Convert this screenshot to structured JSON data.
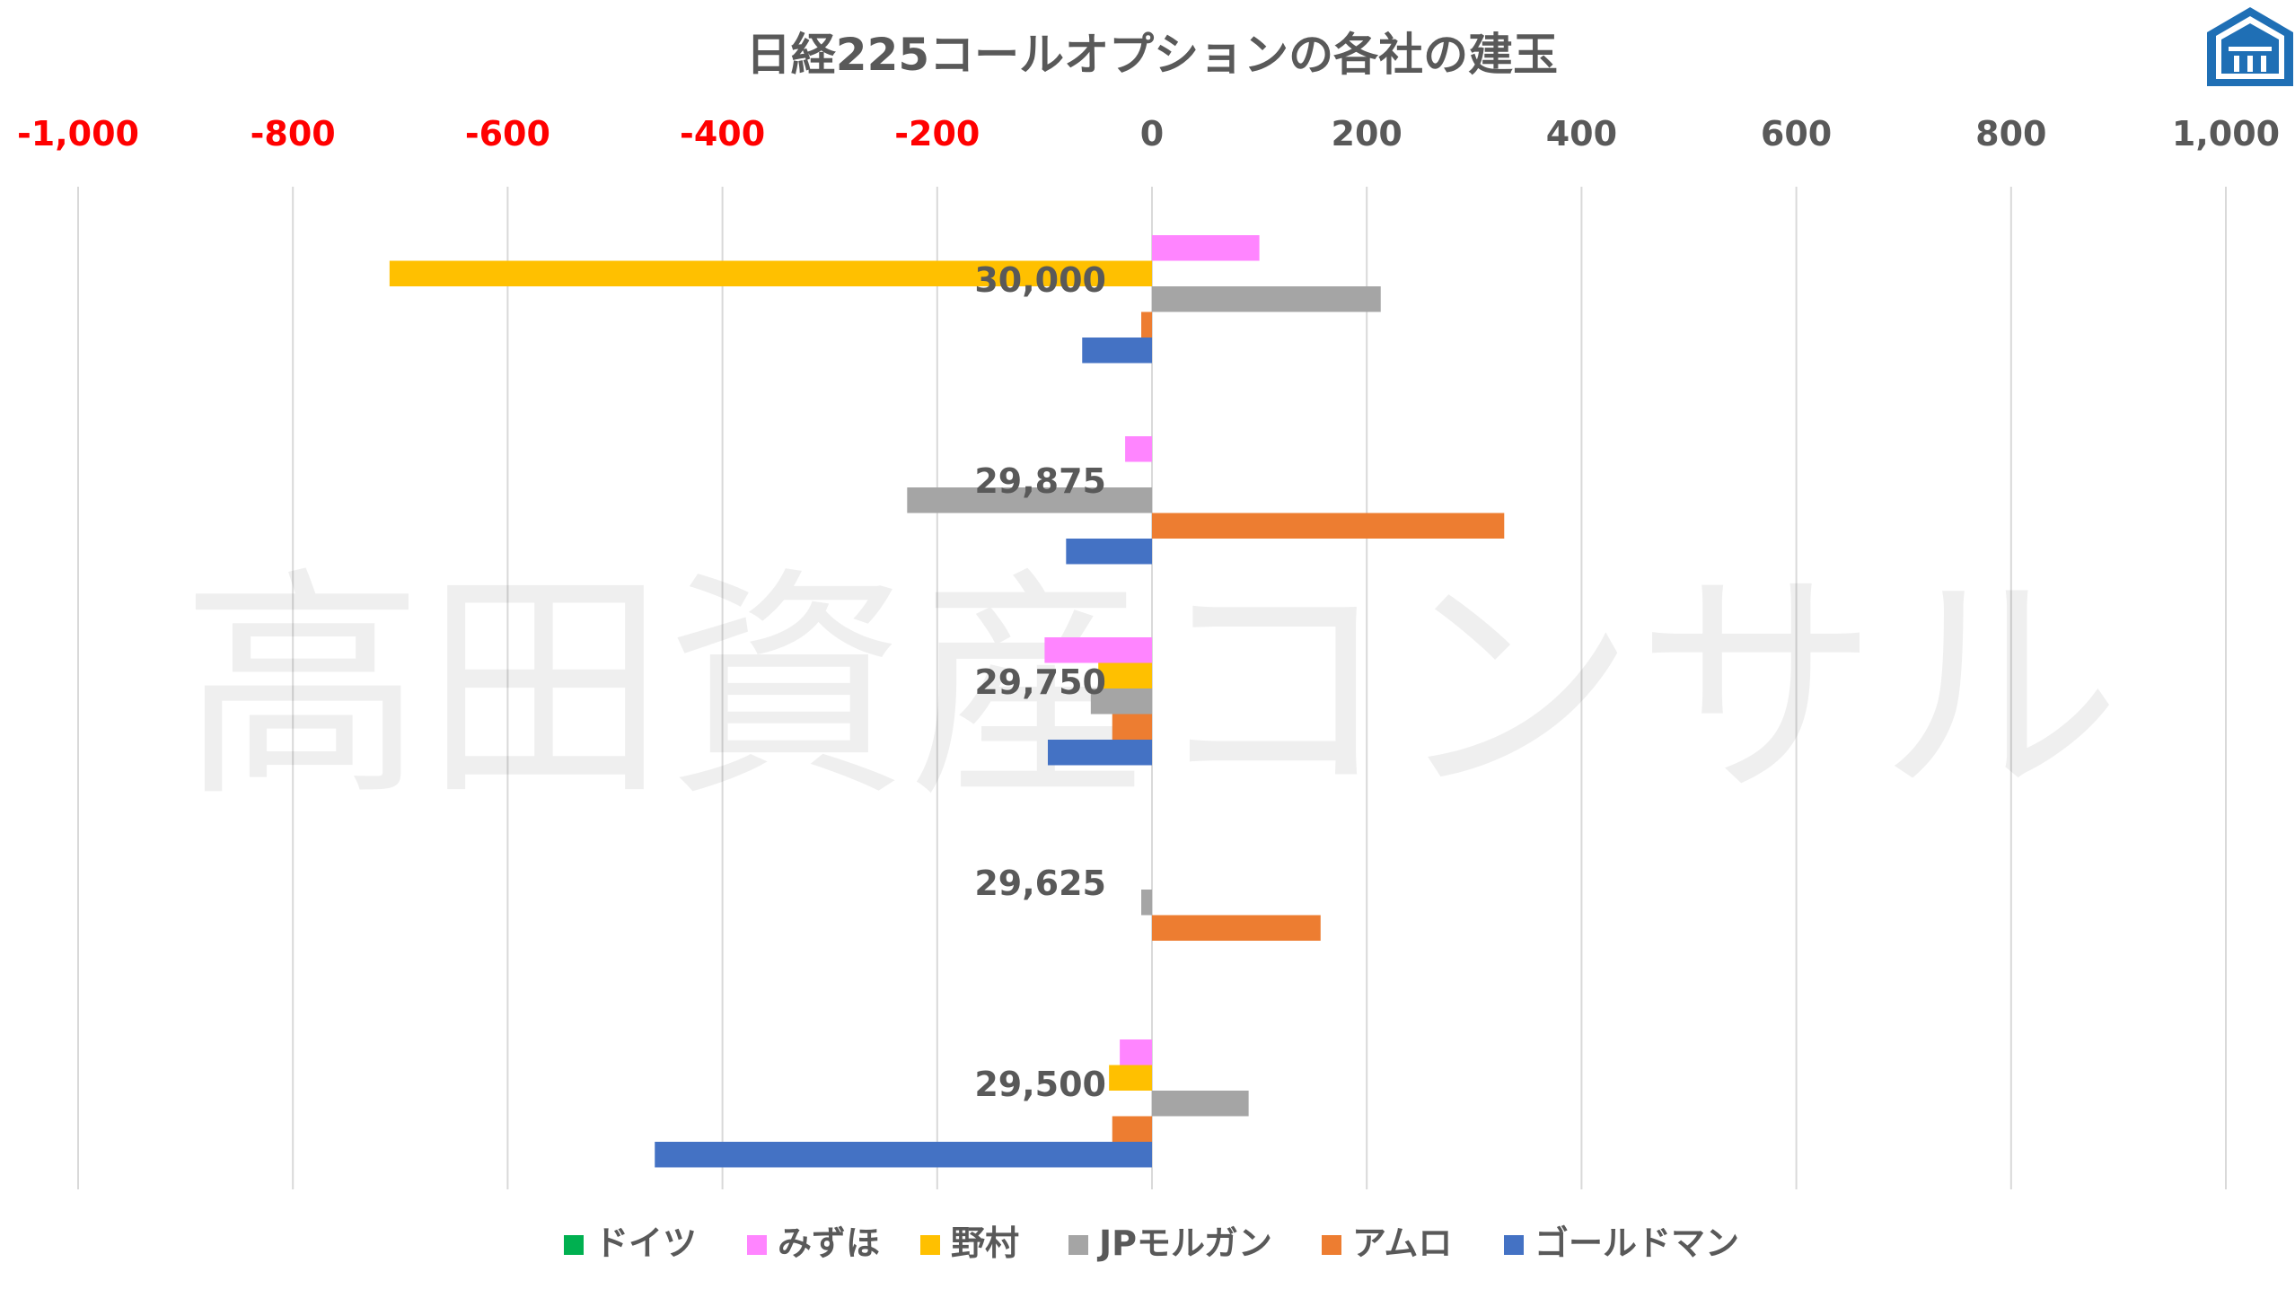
{
  "chart_data": {
    "type": "bar",
    "orientation": "horizontal",
    "title": "日経225コールオプションの各社の建玉",
    "watermark": "高田資産コンサル",
    "xlim": [
      -1000,
      1000
    ],
    "xticks": [
      {
        "value": -1000,
        "label": "-1,000"
      },
      {
        "value": -800,
        "label": "-800"
      },
      {
        "value": -600,
        "label": "-600"
      },
      {
        "value": -400,
        "label": "-400"
      },
      {
        "value": -200,
        "label": "-200"
      },
      {
        "value": 0,
        "label": "0"
      },
      {
        "value": 200,
        "label": "200"
      },
      {
        "value": 400,
        "label": "400"
      },
      {
        "value": 600,
        "label": "600"
      },
      {
        "value": 800,
        "label": "800"
      },
      {
        "value": 1000,
        "label": "1,000"
      }
    ],
    "negative_tick_color": "#ff0000",
    "positive_tick_color": "#595959",
    "grid": true,
    "legend_position": "bottom",
    "categories": [
      "30,000",
      "29,875",
      "29,750",
      "29,625",
      "29,500"
    ],
    "series": [
      {
        "name": "ドイツ",
        "color": "#00b050",
        "values": [
          0,
          0,
          0,
          0,
          0
        ]
      },
      {
        "name": "みずほ",
        "color": "#ff85ff",
        "values": [
          100,
          -25,
          -100,
          0,
          -30
        ]
      },
      {
        "name": "野村",
        "color": "#ffc000",
        "values": [
          -710,
          0,
          -50,
          0,
          -40
        ]
      },
      {
        "name": "JPモルガン",
        "color": "#a5a5a5",
        "values": [
          213,
          -228,
          -57,
          -10,
          90
        ]
      },
      {
        "name": "アムロ",
        "color": "#ed7d31",
        "values": [
          -10,
          328,
          -37,
          157,
          -37
        ]
      },
      {
        "name": "ゴールドマン",
        "color": "#4472c4",
        "values": [
          -65,
          -80,
          -97,
          0,
          -463
        ]
      }
    ]
  }
}
